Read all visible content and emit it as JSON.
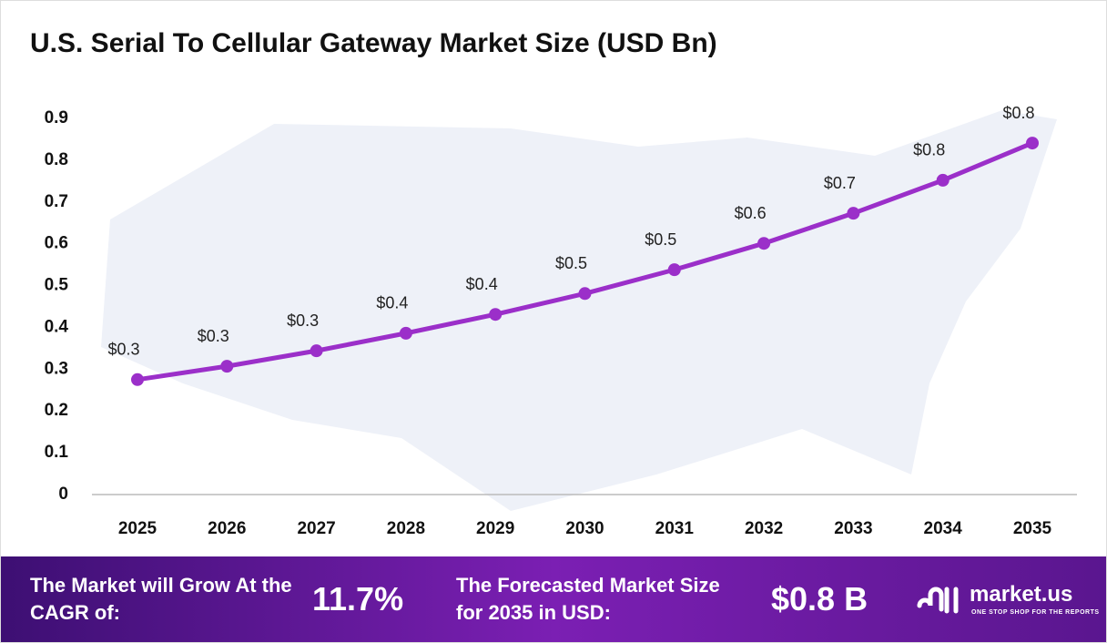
{
  "chart_data": {
    "type": "line",
    "title": "U.S. Serial To Cellular Gateway Market Size (USD Bn)",
    "categories": [
      "2025",
      "2026",
      "2027",
      "2028",
      "2029",
      "2030",
      "2031",
      "2032",
      "2033",
      "2034",
      "2035"
    ],
    "series": [
      {
        "name": "Market Size",
        "color": "#9b2fc9",
        "values": [
          0.275,
          0.307,
          0.344,
          0.386,
          0.431,
          0.481,
          0.538,
          0.601,
          0.673,
          0.752,
          0.841
        ],
        "value_labels": [
          "$0.3",
          "$0.3",
          "$0.3",
          "$0.4",
          "$0.4",
          "$0.5",
          "$0.5",
          "$0.6",
          "$0.7",
          "$0.8",
          "$0.8"
        ]
      }
    ],
    "ylim": [
      0,
      0.9
    ],
    "yticks": [
      0,
      0.1,
      0.2,
      0.3,
      0.4,
      0.5,
      0.6,
      0.7,
      0.8,
      0.9
    ],
    "grid": false
  },
  "footer": {
    "cagr_text": "The Market will Grow At the CAGR of:",
    "cagr_value": "11.7%",
    "forecast_text": "The Forecasted Market Size for 2035 in USD:",
    "forecast_value": "$0.8 B",
    "brand": "market.us",
    "tagline": "ONE STOP SHOP FOR THE REPORTS"
  }
}
